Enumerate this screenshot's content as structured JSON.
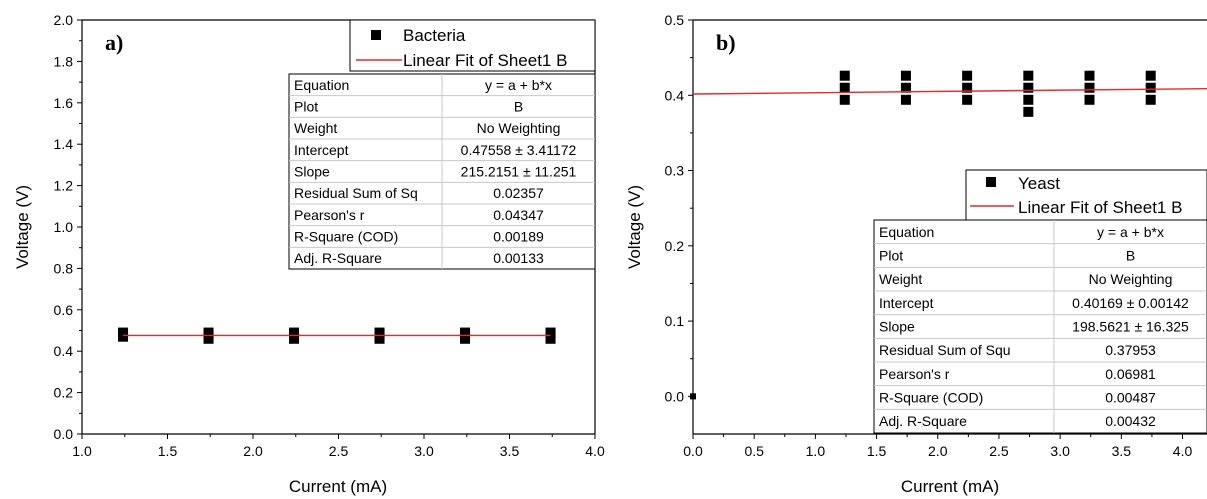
{
  "chart_data": [
    {
      "type": "scatter",
      "panel_label": "a)",
      "xlabel": "Current (mA)",
      "ylabel": "Voltage (V)",
      "xlim": [
        1.0,
        4.0
      ],
      "ylim": [
        0.0,
        2.0
      ],
      "xticks": [
        "1.0",
        "1.5",
        "2.0",
        "2.5",
        "3.0",
        "3.5",
        "4.0"
      ],
      "yticks": [
        "0.0",
        "0.2",
        "0.4",
        "0.6",
        "0.8",
        "1.0",
        "1.2",
        "1.4",
        "1.6",
        "1.8",
        "2.0"
      ],
      "grid": false,
      "legend_position": "top-right",
      "legend": [
        "Bacteria",
        "Linear Fit of Sheet1 B"
      ],
      "series": [
        {
          "name": "Bacteria",
          "points": [
            [
              1.24,
              0.47
            ],
            [
              1.24,
              0.49
            ],
            [
              1.74,
              0.46
            ],
            [
              1.74,
              0.48
            ],
            [
              1.74,
              0.49
            ],
            [
              2.24,
              0.46
            ],
            [
              2.24,
              0.48
            ],
            [
              2.24,
              0.49
            ],
            [
              2.74,
              0.46
            ],
            [
              2.74,
              0.48
            ],
            [
              2.74,
              0.49
            ],
            [
              3.24,
              0.46
            ],
            [
              3.24,
              0.48
            ],
            [
              3.24,
              0.49
            ],
            [
              3.74,
              0.46
            ],
            [
              3.74,
              0.48
            ],
            [
              3.74,
              0.49
            ]
          ]
        }
      ],
      "fit_line": {
        "name": "Linear Fit of Sheet1 B",
        "x": [
          1.24,
          3.74
        ],
        "y": [
          0.476,
          0.476
        ],
        "color": "#e8282b"
      },
      "stats_table": [
        [
          "Equation",
          "y = a + b*x"
        ],
        [
          "Plot",
          "B"
        ],
        [
          "Weight",
          "No Weighting"
        ],
        [
          "Intercept",
          "0.47558 ± 3.41172"
        ],
        [
          "Slope",
          "215.2151 ± 11.251"
        ],
        [
          "Residual Sum of Sq",
          "0.02357"
        ],
        [
          "Pearson's r",
          "0.04347"
        ],
        [
          "R-Square (COD)",
          "0.00189"
        ],
        [
          "Adj. R-Square",
          "0.00133"
        ]
      ]
    },
    {
      "type": "scatter",
      "panel_label": "b)",
      "xlabel": "Current (mA)",
      "ylabel": "Voltage (V)",
      "xlim": [
        0.0,
        4.2
      ],
      "ylim": [
        -0.05,
        0.5
      ],
      "xticks": [
        "0.0",
        "0.5",
        "1.0",
        "1.5",
        "2.0",
        "2.5",
        "3.0",
        "3.5",
        "4.0"
      ],
      "yticks": [
        "0.0",
        "0.1",
        "0.2",
        "0.3",
        "0.4",
        "0.5"
      ],
      "grid": false,
      "legend_position": "center-right",
      "legend": [
        "Yeast",
        "Linear Fit of Sheet1 B"
      ],
      "series": [
        {
          "name": "Yeast",
          "points": [
            [
              0.0,
              0.0
            ],
            [
              1.24,
              0.394
            ],
            [
              1.24,
              0.41
            ],
            [
              1.24,
              0.426
            ],
            [
              1.74,
              0.394
            ],
            [
              1.74,
              0.41
            ],
            [
              1.74,
              0.426
            ],
            [
              2.24,
              0.394
            ],
            [
              2.24,
              0.41
            ],
            [
              2.24,
              0.426
            ],
            [
              2.74,
              0.378
            ],
            [
              2.74,
              0.394
            ],
            [
              2.74,
              0.41
            ],
            [
              2.74,
              0.426
            ],
            [
              3.24,
              0.394
            ],
            [
              3.24,
              0.41
            ],
            [
              3.24,
              0.426
            ],
            [
              3.74,
              0.394
            ],
            [
              3.74,
              0.41
            ],
            [
              3.74,
              0.426
            ]
          ]
        }
      ],
      "fit_line": {
        "name": "Linear Fit of Sheet1 B",
        "x": [
          0.0,
          4.2
        ],
        "y": [
          0.4017,
          0.4088
        ],
        "color": "#e8282b"
      },
      "stats_table": [
        [
          "Equation",
          "y = a + b*x"
        ],
        [
          "Plot",
          "B"
        ],
        [
          "Weight",
          "No Weighting"
        ],
        [
          "Intercept",
          "0.40169 ± 0.00142"
        ],
        [
          "Slope",
          "198.5621 ± 16.325"
        ],
        [
          "Residual Sum of Squ",
          "0.37953"
        ],
        [
          "Pearson's r",
          "0.06981"
        ],
        [
          "R-Square (COD)",
          "0.00487"
        ],
        [
          "Adj. R-Square",
          "0.00432"
        ]
      ]
    }
  ]
}
